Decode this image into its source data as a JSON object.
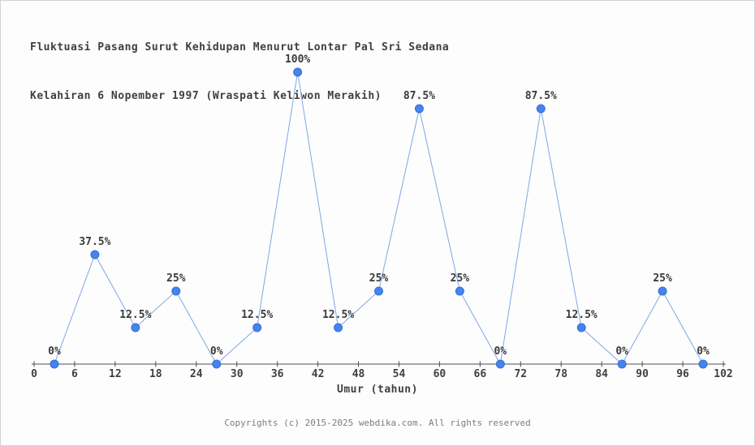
{
  "title": {
    "line1": "Fluktuasi Pasang Surut Kehidupan Menurut Lontar Pal Sri Sedana",
    "line2": "Kelahiran 6 Nopember 1997 (Wraspati Keliwon Merakih)"
  },
  "footer": "Copyrights (c) 2015-2025 webdika.com. All rights reserved",
  "colors": {
    "marker_fill": "#4583ee",
    "marker_edge": "#3570d4",
    "line": "#7fa6e8",
    "axis": "#4d4d4d",
    "tick_text": "#3f3f3f",
    "label_text": "#3a3a3a",
    "footer_text": "#7d7d7d",
    "background": "#fdfdfd"
  },
  "chart_data": {
    "type": "line",
    "title": "Fluktuasi Pasang Surut Kehidupan Menurut Lontar Pal Sri Sedana Kelahiran 6 Nopember 1997 (Wraspati Keliwon Merakih)",
    "xlabel": "Umur (tahun)",
    "ylabel": "",
    "x": [
      3,
      9,
      15,
      21,
      27,
      33,
      39,
      45,
      51,
      57,
      63,
      69,
      75,
      81,
      87,
      93,
      99
    ],
    "values": [
      0,
      37.5,
      12.5,
      25,
      0,
      12.5,
      100,
      12.5,
      25,
      87.5,
      25,
      0,
      87.5,
      12.5,
      0,
      25,
      0
    ],
    "point_labels": [
      "0%",
      "37.5%",
      "12.5%",
      "25%",
      "0%",
      "12.5%",
      "100%",
      "12.5%",
      "25%",
      "87.5%",
      "25%",
      "0%",
      "87.5%",
      "12.5%",
      "0%",
      "25%",
      "0%"
    ],
    "x_ticks": [
      0,
      6,
      12,
      18,
      24,
      30,
      36,
      42,
      48,
      54,
      60,
      66,
      72,
      78,
      84,
      90,
      96,
      102
    ],
    "xlim": [
      0,
      102
    ],
    "ylim": [
      0,
      100
    ],
    "grid": false,
    "legend": false
  }
}
